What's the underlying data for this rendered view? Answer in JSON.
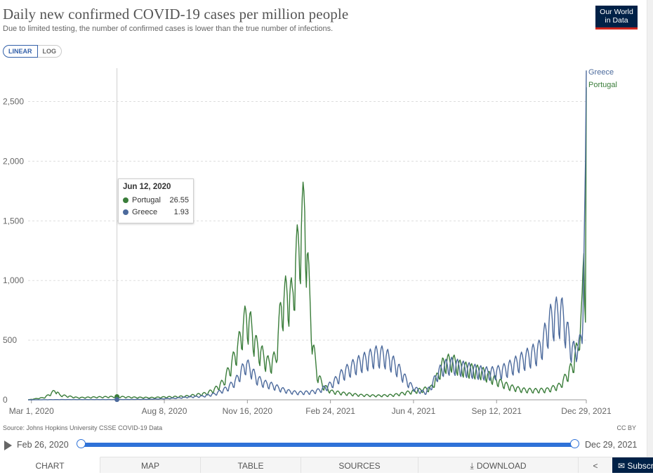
{
  "title": "Daily new confirmed COVID-19 cases per million people",
  "subtitle": "Due to limited testing, the number of confirmed cases is lower than the true number of infections.",
  "logo": {
    "line1": "Our World",
    "line2": "in Data"
  },
  "scale": {
    "linear": "LINEAR",
    "log": "LOG"
  },
  "tooltip": {
    "date": "Jun 12, 2020",
    "rows": [
      {
        "name": "Portugal",
        "value": "26.55",
        "color": "#3a7d3a"
      },
      {
        "name": "Greece",
        "value": "1.93",
        "color": "#4c6a9c"
      }
    ]
  },
  "footer": {
    "source": "Source: Johns Hopkins University CSSE COVID-19 Data",
    "license": "CC BY"
  },
  "timeline": {
    "start": "Feb 26, 2020",
    "end": "Dec 29, 2021"
  },
  "tabs": [
    {
      "label": "CHART"
    },
    {
      "label": "MAP"
    },
    {
      "label": "TABLE"
    },
    {
      "label": "SOURCES"
    },
    {
      "label": "DOWNLOAD"
    }
  ],
  "subscribe_label": "Subscribe",
  "chart_data": {
    "type": "line",
    "title": "Daily new confirmed COVID-19 cases per million people",
    "x_start": "2020-02-26",
    "x_end": "2021-12-29",
    "x_ticks": [
      "Mar 1, 2020",
      "Aug 8, 2020",
      "Nov 16, 2020",
      "Feb 24, 2021",
      "Jun 4, 2021",
      "Sep 12, 2021",
      "Dec 29, 2021"
    ],
    "x_tick_days": [
      4,
      164,
      264,
      364,
      464,
      564,
      672
    ],
    "y_ticks": [
      0,
      500,
      1000,
      1500,
      2000,
      2500
    ],
    "y_tick_labels": [
      "0",
      "500",
      "1,000",
      "1,500",
      "2,000",
      "2,500"
    ],
    "ylim": [
      0,
      2780
    ],
    "hover_day": 107,
    "series": [
      {
        "name": "Portugal",
        "color": "#3a7d3a",
        "anchors": [
          [
            0,
            0
          ],
          [
            20,
            20
          ],
          [
            28,
            55
          ],
          [
            33,
            80
          ],
          [
            38,
            40
          ],
          [
            48,
            30
          ],
          [
            60,
            18
          ],
          [
            80,
            22
          ],
          [
            107,
            26.55
          ],
          [
            130,
            20
          ],
          [
            150,
            18
          ],
          [
            160,
            22
          ],
          [
            175,
            25
          ],
          [
            190,
            30
          ],
          [
            200,
            40
          ],
          [
            215,
            55
          ],
          [
            225,
            90
          ],
          [
            235,
            150
          ],
          [
            245,
            300
          ],
          [
            253,
            450
          ],
          [
            258,
            600
          ],
          [
            263,
            700
          ],
          [
            268,
            620
          ],
          [
            275,
            450
          ],
          [
            282,
            380
          ],
          [
            290,
            300
          ],
          [
            298,
            350
          ],
          [
            305,
            800
          ],
          [
            312,
            900
          ],
          [
            318,
            850
          ],
          [
            322,
            1150
          ],
          [
            327,
            1350
          ],
          [
            333,
            1620
          ],
          [
            338,
            950
          ],
          [
            343,
            450
          ],
          [
            348,
            220
          ],
          [
            355,
            120
          ],
          [
            365,
            70
          ],
          [
            380,
            55
          ],
          [
            400,
            40
          ],
          [
            420,
            35
          ],
          [
            440,
            40
          ],
          [
            455,
            60
          ],
          [
            470,
            80
          ],
          [
            485,
            100
          ],
          [
            493,
            200
          ],
          [
            500,
            310
          ],
          [
            510,
            330
          ],
          [
            520,
            280
          ],
          [
            530,
            260
          ],
          [
            545,
            240
          ],
          [
            555,
            200
          ],
          [
            565,
            160
          ],
          [
            580,
            110
          ],
          [
            595,
            85
          ],
          [
            610,
            80
          ],
          [
            625,
            85
          ],
          [
            640,
            120
          ],
          [
            650,
            220
          ],
          [
            655,
            280
          ],
          [
            660,
            400
          ],
          [
            664,
            520
          ],
          [
            667,
            800
          ],
          [
            669,
            1250
          ],
          [
            671,
            650
          ],
          [
            672,
            2620
          ]
        ]
      },
      {
        "name": "Greece",
        "color": "#4c6a9c",
        "anchors": [
          [
            0,
            0
          ],
          [
            40,
            2
          ],
          [
            70,
            2
          ],
          [
            107,
            1.93
          ],
          [
            140,
            4
          ],
          [
            160,
            8
          ],
          [
            180,
            15
          ],
          [
            195,
            25
          ],
          [
            210,
            30
          ],
          [
            225,
            50
          ],
          [
            240,
            100
          ],
          [
            250,
            160
          ],
          [
            256,
            230
          ],
          [
            262,
            300
          ],
          [
            268,
            260
          ],
          [
            275,
            180
          ],
          [
            285,
            140
          ],
          [
            295,
            120
          ],
          [
            305,
            90
          ],
          [
            315,
            70
          ],
          [
            325,
            60
          ],
          [
            340,
            65
          ],
          [
            350,
            80
          ],
          [
            360,
            110
          ],
          [
            368,
            150
          ],
          [
            378,
            220
          ],
          [
            390,
            280
          ],
          [
            400,
            320
          ],
          [
            410,
            350
          ],
          [
            418,
            380
          ],
          [
            428,
            380
          ],
          [
            436,
            340
          ],
          [
            446,
            260
          ],
          [
            455,
            170
          ],
          [
            462,
            110
          ],
          [
            470,
            80
          ],
          [
            478,
            60
          ],
          [
            485,
            110
          ],
          [
            492,
            210
          ],
          [
            500,
            280
          ],
          [
            510,
            300
          ],
          [
            520,
            280
          ],
          [
            532,
            260
          ],
          [
            545,
            240
          ],
          [
            555,
            230
          ],
          [
            565,
            240
          ],
          [
            575,
            260
          ],
          [
            590,
            320
          ],
          [
            605,
            380
          ],
          [
            615,
            420
          ],
          [
            620,
            500
          ],
          [
            625,
            600
          ],
          [
            630,
            690
          ],
          [
            635,
            720
          ],
          [
            642,
            740
          ],
          [
            648,
            600
          ],
          [
            653,
            460
          ],
          [
            658,
            400
          ],
          [
            663,
            460
          ],
          [
            667,
            560
          ],
          [
            670,
            1450
          ],
          [
            671,
            2000
          ],
          [
            672,
            2760
          ]
        ]
      }
    ]
  }
}
